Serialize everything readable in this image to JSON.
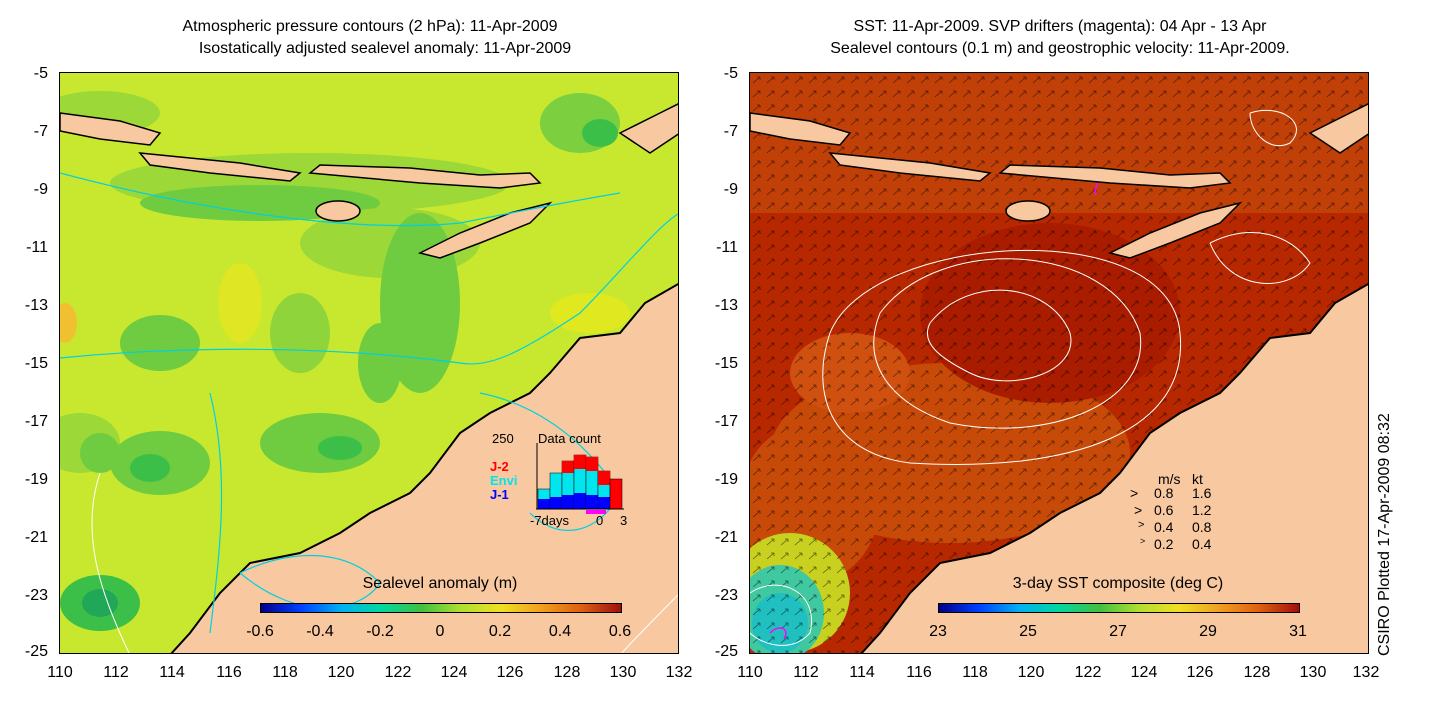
{
  "left_panel": {
    "title_line1": "Atmospheric pressure contours (2 hPa): 11-Apr-2009",
    "title_line2": "Isostatically adjusted sealevel anomaly: 11-Apr-2009",
    "colorbar_title": "Sealevel anomaly (m)",
    "colorbar_ticks": [
      "-0.6",
      "-0.4",
      "-0.2",
      "0",
      "0.2",
      "0.4",
      "0.6"
    ],
    "inset": {
      "max_label": "250",
      "title": "Data count",
      "series": [
        {
          "name": "J-2",
          "color": "#ff0000"
        },
        {
          "name": "Envi",
          "color": "#00e5ee"
        },
        {
          "name": "J-1",
          "color": "#0000ff"
        }
      ],
      "x_left": "-7days",
      "x_mid": "0",
      "x_right": "3"
    }
  },
  "right_panel": {
    "title_line1": "SST: 11-Apr-2009. SVP drifters (magenta): 04 Apr - 13 Apr",
    "title_line2": "Sealevel contours (0.1 m) and geostrophic velocity: 11-Apr-2009.",
    "colorbar_title": "3-day SST composite (deg C)",
    "colorbar_ticks": [
      "23",
      "25",
      "27",
      "29",
      "31"
    ],
    "velocity_legend": {
      "header_ms": "m/s",
      "header_kt": "kt",
      "rows": [
        {
          "ms": "0.8",
          "kt": "1.6"
        },
        {
          "ms": "0.6",
          "kt": "1.2"
        },
        {
          "ms": "0.4",
          "kt": "0.8"
        },
        {
          "ms": "0.2",
          "kt": "0.4"
        }
      ]
    }
  },
  "axes": {
    "y_ticks": [
      "-5",
      "-7",
      "-9",
      "-11",
      "-13",
      "-15",
      "-17",
      "-19",
      "-21",
      "-23",
      "-25"
    ],
    "x_ticks": [
      "110",
      "112",
      "114",
      "116",
      "118",
      "120",
      "122",
      "124",
      "126",
      "128",
      "130",
      "132"
    ]
  },
  "side_label": "CSIRO Plotted 17-Apr-2009 08:32",
  "colors": {
    "land": "#f8c8a0",
    "sla_base": "#c8e830",
    "sst_base": "#b82800",
    "contour_cyan": "#00d0e0"
  }
}
